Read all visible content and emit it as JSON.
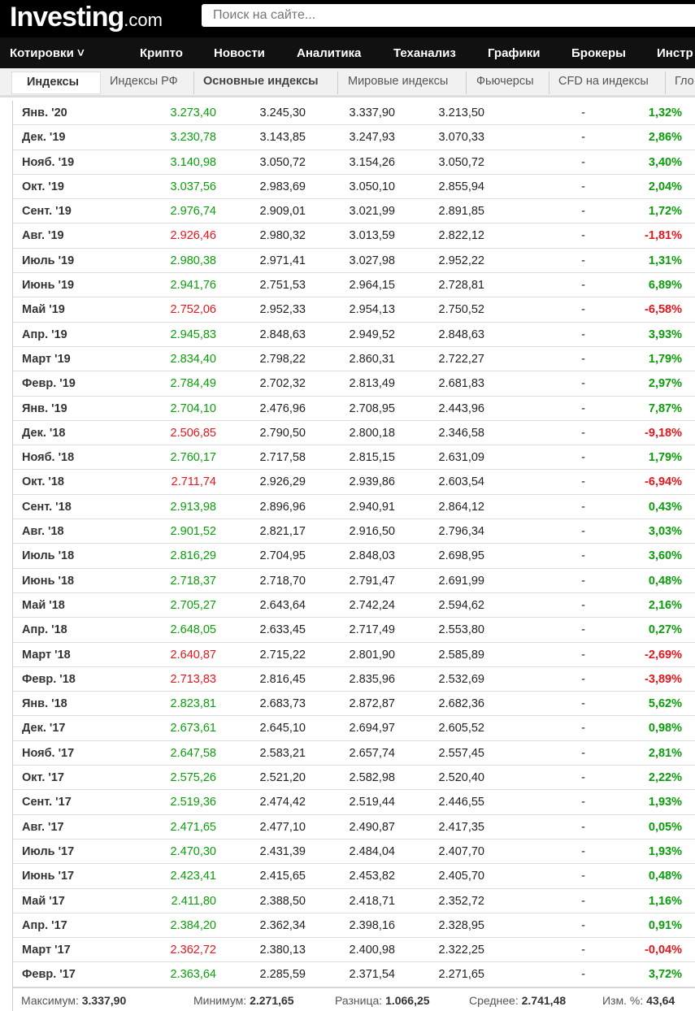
{
  "header": {
    "logo": "Investing",
    "logo_suffix": ".com",
    "search_placeholder": "Поиск на сайте..."
  },
  "nav": [
    "Котировки ˅",
    "Крипто",
    "Новости",
    "Аналитика",
    "Теханализ",
    "Графики",
    "Брокеры",
    "Инстр"
  ],
  "subnav": [
    "Индексы",
    "Индексы РФ",
    "Основные индексы",
    "Мировые индексы",
    "Фьючерсы",
    "CFD на индексы",
    "Гло"
  ],
  "colors": {
    "up": "#0a9e0a",
    "down": "#e8151b"
  },
  "rows": [
    [
      "Янв. '20",
      "3.273,40",
      "3.245,30",
      "3.337,90",
      "3.213,50",
      "-",
      "1,32%"
    ],
    [
      "Дек. '19",
      "3.230,78",
      "3.143,85",
      "3.247,93",
      "3.070,33",
      "-",
      "2,86%"
    ],
    [
      "Нояб. '19",
      "3.140,98",
      "3.050,72",
      "3.154,26",
      "3.050,72",
      "-",
      "3,40%"
    ],
    [
      "Окт. '19",
      "3.037,56",
      "2.983,69",
      "3.050,10",
      "2.855,94",
      "-",
      "2,04%"
    ],
    [
      "Сент. '19",
      "2.976,74",
      "2.909,01",
      "3.021,99",
      "2.891,85",
      "-",
      "1,72%"
    ],
    [
      "Авг. '19",
      "2.926,46",
      "2.980,32",
      "3.013,59",
      "2.822,12",
      "-",
      "-1,81%"
    ],
    [
      "Июль '19",
      "2.980,38",
      "2.971,41",
      "3.027,98",
      "2.952,22",
      "-",
      "1,31%"
    ],
    [
      "Июнь '19",
      "2.941,76",
      "2.751,53",
      "2.964,15",
      "2.728,81",
      "-",
      "6,89%"
    ],
    [
      "Май '19",
      "2.752,06",
      "2.952,33",
      "2.954,13",
      "2.750,52",
      "-",
      "-6,58%"
    ],
    [
      "Апр. '19",
      "2.945,83",
      "2.848,63",
      "2.949,52",
      "2.848,63",
      "-",
      "3,93%"
    ],
    [
      "Март '19",
      "2.834,40",
      "2.798,22",
      "2.860,31",
      "2.722,27",
      "-",
      "1,79%"
    ],
    [
      "Февр. '19",
      "2.784,49",
      "2.702,32",
      "2.813,49",
      "2.681,83",
      "-",
      "2,97%"
    ],
    [
      "Янв. '19",
      "2.704,10",
      "2.476,96",
      "2.708,95",
      "2.443,96",
      "-",
      "7,87%"
    ],
    [
      "Дек. '18",
      "2.506,85",
      "2.790,50",
      "2.800,18",
      "2.346,58",
      "-",
      "-9,18%"
    ],
    [
      "Нояб. '18",
      "2.760,17",
      "2.717,58",
      "2.815,15",
      "2.631,09",
      "-",
      "1,79%"
    ],
    [
      "Окт. '18",
      "2.711,74",
      "2.926,29",
      "2.939,86",
      "2.603,54",
      "-",
      "-6,94%"
    ],
    [
      "Сент. '18",
      "2.913,98",
      "2.896,96",
      "2.940,91",
      "2.864,12",
      "-",
      "0,43%"
    ],
    [
      "Авг. '18",
      "2.901,52",
      "2.821,17",
      "2.916,50",
      "2.796,34",
      "-",
      "3,03%"
    ],
    [
      "Июль '18",
      "2.816,29",
      "2.704,95",
      "2.848,03",
      "2.698,95",
      "-",
      "3,60%"
    ],
    [
      "Июнь '18",
      "2.718,37",
      "2.718,70",
      "2.791,47",
      "2.691,99",
      "-",
      "0,48%"
    ],
    [
      "Май '18",
      "2.705,27",
      "2.643,64",
      "2.742,24",
      "2.594,62",
      "-",
      "2,16%"
    ],
    [
      "Апр. '18",
      "2.648,05",
      "2.633,45",
      "2.717,49",
      "2.553,80",
      "-",
      "0,27%"
    ],
    [
      "Март '18",
      "2.640,87",
      "2.715,22",
      "2.801,90",
      "2.585,89",
      "-",
      "-2,69%"
    ],
    [
      "Февр. '18",
      "2.713,83",
      "2.816,45",
      "2.835,96",
      "2.532,69",
      "-",
      "-3,89%"
    ],
    [
      "Янв. '18",
      "2.823,81",
      "2.683,73",
      "2.872,87",
      "2.682,36",
      "-",
      "5,62%"
    ],
    [
      "Дек. '17",
      "2.673,61",
      "2.645,10",
      "2.694,97",
      "2.605,52",
      "-",
      "0,98%"
    ],
    [
      "Нояб. '17",
      "2.647,58",
      "2.583,21",
      "2.657,74",
      "2.557,45",
      "-",
      "2,81%"
    ],
    [
      "Окт. '17",
      "2.575,26",
      "2.521,20",
      "2.582,98",
      "2.520,40",
      "-",
      "2,22%"
    ],
    [
      "Сент. '17",
      "2.519,36",
      "2.474,42",
      "2.519,44",
      "2.446,55",
      "-",
      "1,93%"
    ],
    [
      "Авг. '17",
      "2.471,65",
      "2.477,10",
      "2.490,87",
      "2.417,35",
      "-",
      "0,05%"
    ],
    [
      "Июль '17",
      "2.470,30",
      "2.431,39",
      "2.484,04",
      "2.407,70",
      "-",
      "1,93%"
    ],
    [
      "Июнь '17",
      "2.423,41",
      "2.415,65",
      "2.453,82",
      "2.405,70",
      "-",
      "0,48%"
    ],
    [
      "Май '17",
      "2.411,80",
      "2.388,50",
      "2.418,71",
      "2.352,72",
      "-",
      "1,16%"
    ],
    [
      "Апр. '17",
      "2.384,20",
      "2.362,34",
      "2.398,16",
      "2.328,95",
      "-",
      "0,91%"
    ],
    [
      "Март '17",
      "2.362,72",
      "2.380,13",
      "2.400,98",
      "2.322,25",
      "-",
      "-0,04%"
    ],
    [
      "Февр. '17",
      "2.363,64",
      "2.285,59",
      "2.371,54",
      "2.271,65",
      "-",
      "3,72%"
    ]
  ],
  "summary": {
    "max_label": "Максимум:",
    "max": "3.337,90",
    "min_label": "Минимум:",
    "min": "2.271,65",
    "diff_label": "Разница:",
    "diff": "1.066,25",
    "avg_label": "Среднее:",
    "avg": "2.741,48",
    "chg_label": "Изм. %:",
    "chg": "43,64"
  }
}
